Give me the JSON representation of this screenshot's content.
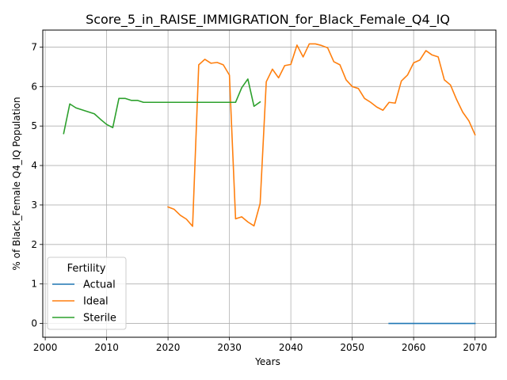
{
  "chart_data": {
    "type": "line",
    "title": "Score_5_in_RAISE_IMMIGRATION_for_Black_Female_Q4_IQ",
    "xlabel": "Years",
    "ylabel": "% of Black_Female Q4_IQ Population",
    "xlim": [
      1999.6,
      2073.4
    ],
    "ylim": [
      -0.35,
      7.43
    ],
    "xticks": [
      2000,
      2010,
      2020,
      2030,
      2040,
      2050,
      2060,
      2070
    ],
    "yticks": [
      0,
      1,
      2,
      3,
      4,
      5,
      6,
      7
    ],
    "grid": true,
    "legend": {
      "title": "Fertility",
      "placement": "lower-left"
    },
    "series": [
      {
        "name": "Actual",
        "color": "#1f77b4",
        "points": [
          [
            2056,
            0.0
          ],
          [
            2060,
            0.0
          ],
          [
            2065,
            0.0
          ],
          [
            2070,
            0.0
          ]
        ]
      },
      {
        "name": "Ideal",
        "color": "#ff7f0e",
        "points": [
          [
            2020,
            2.95
          ],
          [
            2021,
            2.89
          ],
          [
            2022,
            2.74
          ],
          [
            2023,
            2.64
          ],
          [
            2024,
            2.46
          ],
          [
            2025,
            6.55
          ],
          [
            2026,
            6.69
          ],
          [
            2027,
            6.59
          ],
          [
            2028,
            6.61
          ],
          [
            2029,
            6.55
          ],
          [
            2030,
            6.29
          ],
          [
            2031,
            2.65
          ],
          [
            2032,
            2.7
          ],
          [
            2033,
            2.57
          ],
          [
            2034,
            2.47
          ],
          [
            2035,
            3.04
          ],
          [
            2036,
            6.12
          ],
          [
            2037,
            6.44
          ],
          [
            2038,
            6.22
          ],
          [
            2039,
            6.53
          ],
          [
            2040,
            6.56
          ],
          [
            2041,
            7.05
          ],
          [
            2042,
            6.75
          ],
          [
            2043,
            7.08
          ],
          [
            2044,
            7.08
          ],
          [
            2045,
            7.04
          ],
          [
            2046,
            6.98
          ],
          [
            2047,
            6.63
          ],
          [
            2048,
            6.55
          ],
          [
            2049,
            6.17
          ],
          [
            2050,
            6.0
          ],
          [
            2051,
            5.95
          ],
          [
            2052,
            5.7
          ],
          [
            2053,
            5.6
          ],
          [
            2054,
            5.48
          ],
          [
            2055,
            5.4
          ],
          [
            2056,
            5.6
          ],
          [
            2057,
            5.58
          ],
          [
            2058,
            6.14
          ],
          [
            2059,
            6.29
          ],
          [
            2060,
            6.6
          ],
          [
            2061,
            6.67
          ],
          [
            2062,
            6.91
          ],
          [
            2063,
            6.8
          ],
          [
            2064,
            6.75
          ],
          [
            2065,
            6.17
          ],
          [
            2066,
            6.04
          ],
          [
            2067,
            5.67
          ],
          [
            2068,
            5.35
          ],
          [
            2069,
            5.13
          ],
          [
            2070,
            4.78
          ]
        ]
      },
      {
        "name": "Sterile",
        "color": "#2ca02c",
        "points": [
          [
            2003,
            4.81
          ],
          [
            2004,
            5.56
          ],
          [
            2005,
            5.46
          ],
          [
            2006,
            5.41
          ],
          [
            2007,
            5.36
          ],
          [
            2008,
            5.31
          ],
          [
            2009,
            5.17
          ],
          [
            2010,
            5.04
          ],
          [
            2011,
            4.96
          ],
          [
            2012,
            5.7
          ],
          [
            2013,
            5.7
          ],
          [
            2014,
            5.65
          ],
          [
            2015,
            5.65
          ],
          [
            2016,
            5.6
          ],
          [
            2020,
            5.6
          ],
          [
            2025,
            5.6
          ],
          [
            2030,
            5.6
          ],
          [
            2031,
            5.6
          ],
          [
            2032,
            5.97
          ],
          [
            2033,
            6.19
          ],
          [
            2034,
            5.5
          ],
          [
            2035,
            5.61
          ]
        ]
      }
    ]
  }
}
